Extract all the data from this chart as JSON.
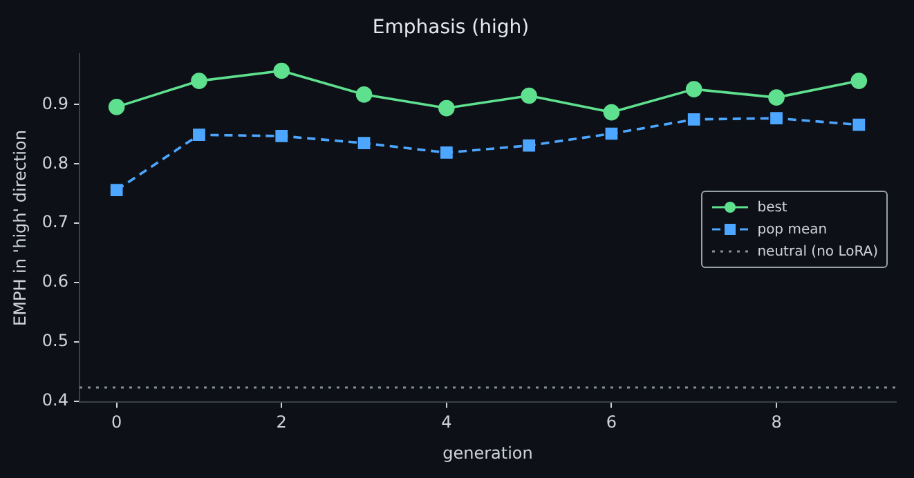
{
  "chart_data": {
    "type": "line",
    "title": "Emphasis (high)",
    "xlabel": "generation",
    "ylabel": "EMPH in 'high' direction",
    "x": [
      0,
      1,
      2,
      3,
      4,
      5,
      6,
      7,
      8,
      9
    ],
    "series": [
      {
        "name": "best",
        "color": "#5ee08f",
        "marker": "circle",
        "line_style": "solid",
        "values": [
          0.896,
          0.94,
          0.957,
          0.917,
          0.894,
          0.915,
          0.887,
          0.926,
          0.912,
          0.94
        ]
      },
      {
        "name": "pop mean",
        "color": "#4da6ff",
        "marker": "square",
        "line_style": "dashed",
        "values": [
          0.756,
          0.849,
          0.847,
          0.835,
          0.819,
          0.831,
          0.851,
          0.875,
          0.877,
          0.866
        ]
      }
    ],
    "ref_lines": [
      {
        "axis": "y",
        "value": 0.423,
        "label": "neutral (no LoRA)",
        "color": "#8a8f98",
        "line_style": "dotted"
      }
    ],
    "xlim": [
      -0.45,
      9.45
    ],
    "ylim": [
      0.398,
      0.986
    ],
    "xticks": [
      0,
      2,
      4,
      6,
      8
    ],
    "yticks": [
      0.4,
      0.5,
      0.6,
      0.7,
      0.8,
      0.9
    ],
    "grid": false,
    "legend": "center right"
  }
}
